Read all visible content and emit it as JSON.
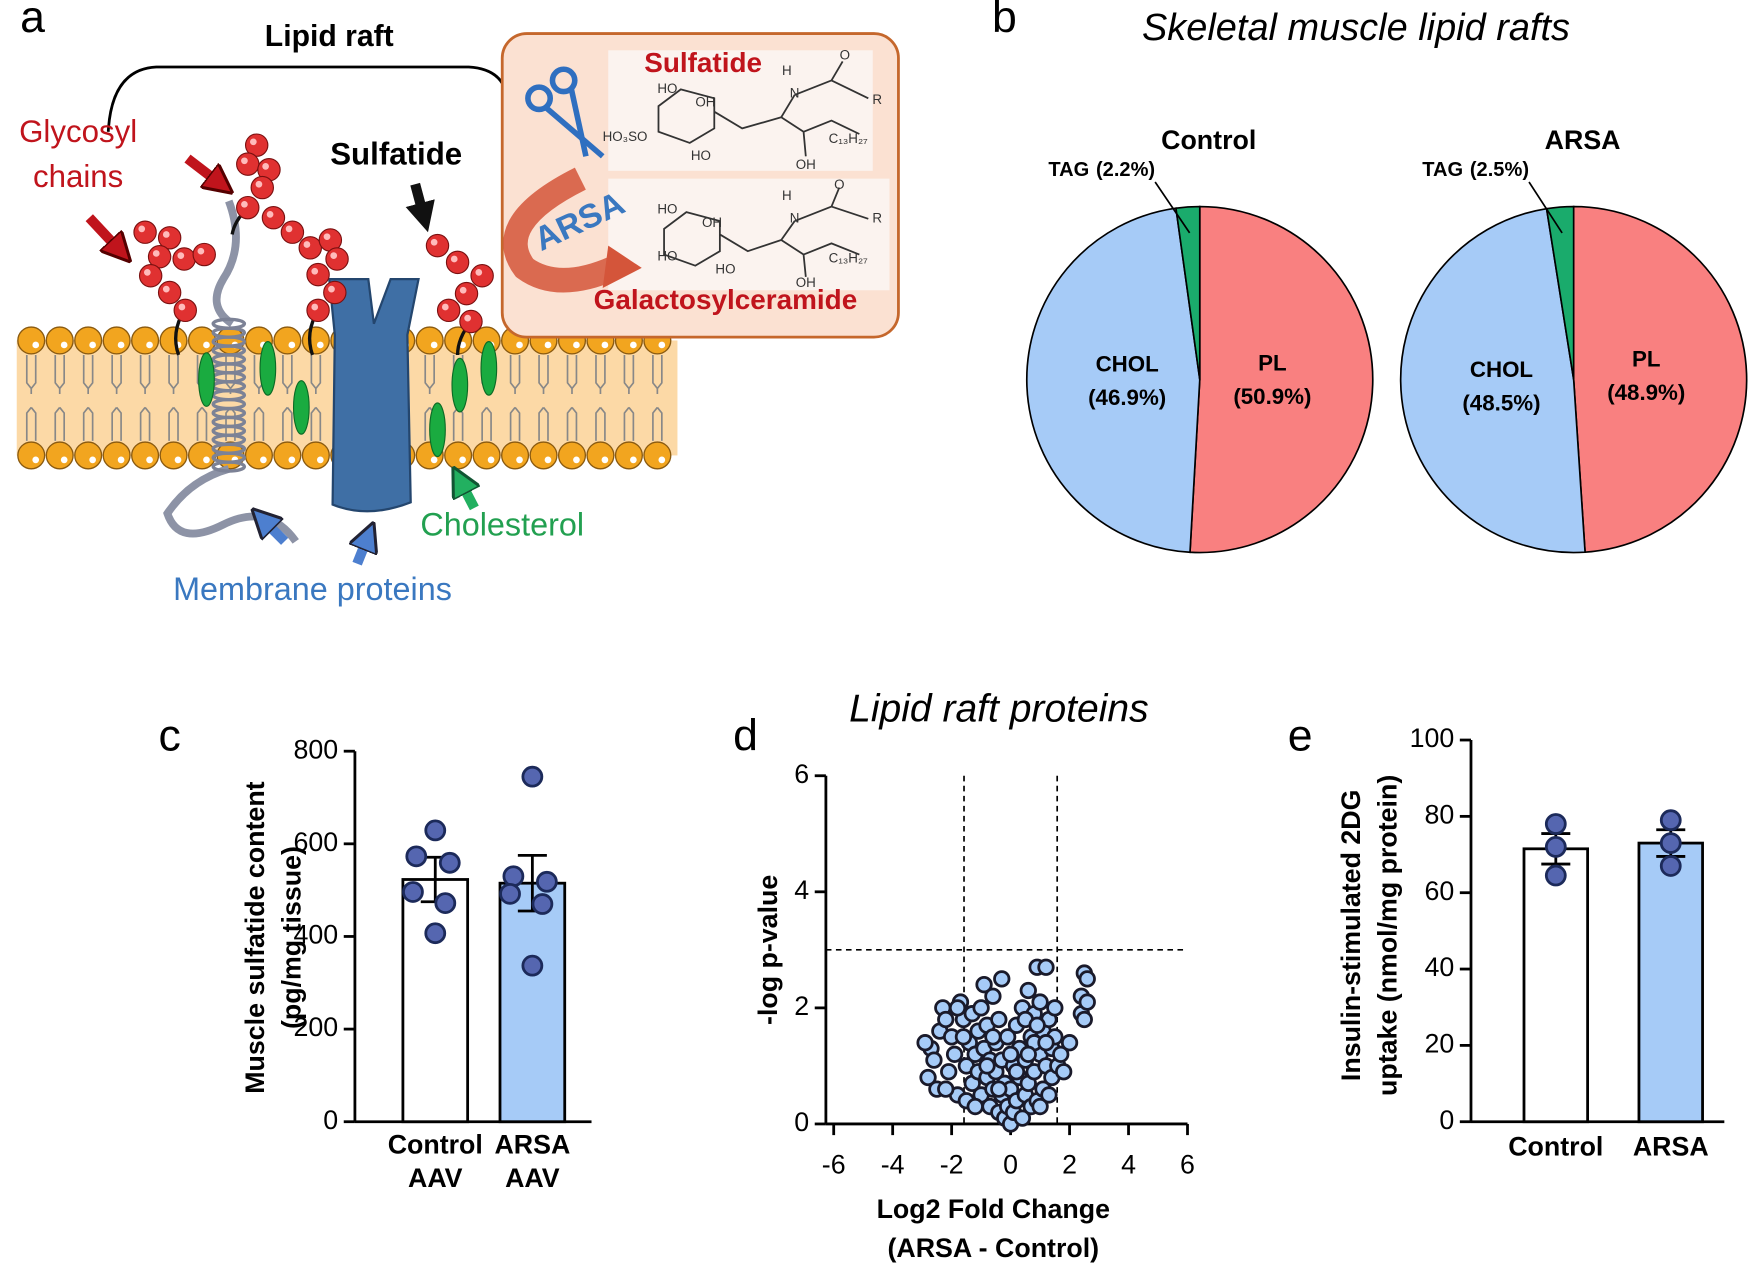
{
  "diagram": {
    "panel": "a",
    "lipid_raft": "Lipid raft",
    "glycosyl": [
      "Glycosyl",
      "chains"
    ],
    "sulfatide": "Sulfatide",
    "box_sulfatide": "Sulfatide",
    "enzyme": "ARSA",
    "product": "Galactosylceramide",
    "cholesterol": "Cholesterol",
    "proteins": "Membrane proteins",
    "sulfatide_atoms": [
      "HO",
      "OH",
      "HO₃SO",
      "HO",
      "H",
      "N",
      "O",
      "R",
      "C₁₃H₂₇",
      "OH"
    ],
    "product_atoms": [
      "HO",
      "OH",
      "HO",
      "HO",
      "H",
      "N",
      "O",
      "R",
      "C₁₃H₂₇",
      "OH"
    ]
  },
  "chart_data": [
    {
      "type": "pie",
      "panel": "b",
      "title": "Skeletal muscle lipid rafts",
      "pies": [
        {
          "name": "Control",
          "categories": [
            "PL",
            "CHOL",
            "TAG"
          ],
          "values": [
            50.9,
            46.9,
            2.2
          ],
          "value_labels": [
            "(50.9%)",
            "(46.9%)",
            "(2.2%)"
          ]
        },
        {
          "name": "ARSA",
          "categories": [
            "PL",
            "CHOL",
            "TAG"
          ],
          "values": [
            48.9,
            48.5,
            2.5
          ],
          "value_labels": [
            "(48.9%)",
            "(48.5%)",
            "(2.5%)"
          ]
        }
      ],
      "colors": [
        "#f98080",
        "#a6cbf7",
        "#1aab6c"
      ]
    },
    {
      "type": "bar",
      "panel": "c",
      "ylabel": [
        "Muscle sulfatide content",
        "(pg/mg tissue)"
      ],
      "categories": [
        [
          "Control",
          "AAV"
        ],
        [
          "ARSA",
          "AAV"
        ]
      ],
      "values": [
        523,
        515
      ],
      "errors": [
        48,
        60
      ],
      "points": [
        [
          629,
          573,
          559,
          496,
          472,
          407
        ],
        [
          745,
          530,
          518,
          492,
          470,
          337
        ]
      ],
      "colors": [
        "#ffffff",
        "#a6cbf7"
      ],
      "point_color": "#5566b0",
      "ylim": [
        0,
        800
      ],
      "yticks": [
        0,
        200,
        400,
        600,
        800
      ]
    },
    {
      "type": "scatter",
      "panel": "d",
      "title": "Lipid raft proteins",
      "xlabel": [
        "Log2 Fold Change",
        "(ARSA - Control)"
      ],
      "ylabel": "-log p-value",
      "x": [
        -2.8,
        -2.7,
        -2.6,
        -2.5,
        -2.4,
        -2.3,
        -2.2,
        -2.1,
        -2.0,
        -1.9,
        -1.8,
        -1.7,
        -1.6,
        -1.5,
        -1.5,
        -1.4,
        -1.3,
        -1.3,
        -1.2,
        -1.1,
        -1.1,
        -1.0,
        -1.0,
        -0.9,
        -0.9,
        -0.8,
        -0.8,
        -0.7,
        -0.7,
        -0.6,
        -0.6,
        -0.5,
        -0.5,
        -0.4,
        -0.4,
        -0.3,
        -0.3,
        -0.2,
        -0.2,
        -0.1,
        -0.1,
        0.0,
        0.0,
        0.1,
        0.1,
        0.2,
        0.2,
        0.3,
        0.3,
        0.4,
        0.4,
        0.5,
        0.5,
        0.6,
        0.6,
        0.7,
        0.7,
        0.8,
        0.8,
        0.9,
        0.9,
        1.0,
        1.0,
        1.1,
        1.1,
        1.2,
        1.2,
        1.3,
        1.3,
        1.4,
        1.4,
        1.5,
        1.6,
        1.7,
        1.8,
        2.0,
        2.4,
        2.4,
        2.5,
        2.5,
        2.6,
        2.6,
        -2.9,
        -2.2,
        -1.8,
        -1.2,
        -0.6,
        0.0,
        0.5,
        1.0,
        1.5,
        -0.3,
        0.8,
        -1.6,
        0.2,
        -0.8,
        1.2,
        0.6,
        -0.4,
        0.9
      ],
      "y": [
        0.8,
        1.3,
        1.1,
        0.6,
        1.6,
        2.0,
        1.8,
        0.9,
        1.5,
        1.2,
        0.5,
        2.1,
        1.8,
        1.0,
        0.4,
        1.4,
        0.7,
        1.9,
        1.2,
        0.9,
        1.6,
        2.0,
        0.5,
        1.3,
        2.4,
        0.8,
        1.7,
        1.1,
        0.3,
        2.2,
        0.6,
        1.4,
        0.9,
        0.2,
        1.8,
        0.5,
        1.1,
        0.1,
        0.7,
        0.3,
        1.5,
        0.0,
        0.6,
        0.2,
        1.0,
        0.4,
        1.7,
        0.8,
        1.3,
        0.1,
        2.0,
        0.5,
        1.1,
        2.3,
        0.7,
        1.5,
        0.3,
        1.9,
        0.9,
        2.7,
        0.4,
        1.2,
        2.1,
        0.6,
        1.6,
        2.7,
        1.0,
        0.5,
        1.8,
        1.3,
        0.8,
        1.5,
        1.0,
        1.2,
        0.9,
        1.4,
        1.9,
        2.2,
        2.6,
        1.8,
        2.1,
        2.5,
        1.4,
        0.6,
        2.0,
        0.3,
        1.5,
        1.2,
        1.8,
        0.3,
        2.0,
        2.5,
        1.4,
        1.5,
        0.9,
        1.0,
        1.4,
        1.2,
        0.6,
        1.7
      ],
      "color": "#a6cbf7",
      "vlines": [
        -1.58,
        1.58
      ],
      "hline": 3,
      "xlim": [
        -6,
        6
      ],
      "xticks": [
        -6,
        -4,
        -2,
        0,
        2,
        4,
        6
      ],
      "ylim": [
        0,
        6
      ],
      "yticks": [
        0,
        2,
        4,
        6
      ]
    },
    {
      "type": "bar",
      "panel": "e",
      "ylabel": [
        "Insulin-stimulated 2DG",
        "uptake (nmol/mg protein)"
      ],
      "categories": [
        [
          "Control"
        ],
        [
          "ARSA"
        ]
      ],
      "values": [
        71.5,
        73
      ],
      "errors": [
        4,
        3.5
      ],
      "points": [
        [
          78,
          72,
          64.5
        ],
        [
          79,
          73,
          67
        ]
      ],
      "colors": [
        "#ffffff",
        "#a6cbf7"
      ],
      "point_color": "#5566b0",
      "ylim": [
        0,
        100
      ],
      "yticks": [
        0,
        20,
        40,
        60,
        80,
        100
      ]
    }
  ]
}
